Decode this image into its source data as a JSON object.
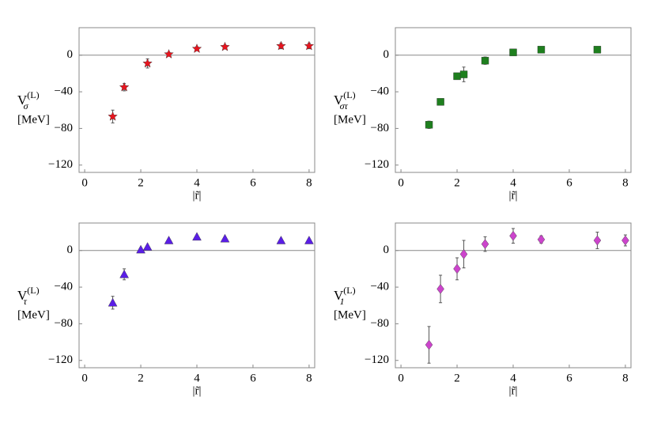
{
  "chart_data": [
    {
      "type": "scatter",
      "marker": "star",
      "color": "#e8141e",
      "ylabel": {
        "main": "V",
        "sup": "(L)",
        "sub": "σ"
      },
      "yunit": "[MeV]",
      "xlabel": "|r̃|",
      "x": [
        1,
        1.41,
        2.24,
        3,
        4,
        5,
        7,
        8
      ],
      "values": [
        -67,
        -35,
        -9,
        1,
        7,
        9,
        10,
        10
      ],
      "errors": [
        7,
        4,
        5,
        2,
        2,
        2,
        3,
        3
      ],
      "xlim": [
        -0.2,
        8.2
      ],
      "ylim": [
        -128,
        30
      ],
      "xticks": [
        0,
        2,
        4,
        6,
        8
      ],
      "yticks": [
        {
          "value": -120,
          "label": "−120"
        },
        {
          "value": -80,
          "label": "−80"
        },
        {
          "value": -40,
          "label": "−40"
        },
        0
      ]
    },
    {
      "type": "scatter",
      "marker": "square",
      "color": "#1e7f1e",
      "ylabel": {
        "main": "V",
        "sup": "(L)",
        "sub": "στ"
      },
      "yunit": "[MeV]",
      "xlabel": "|r̃|",
      "x": [
        1,
        1.41,
        2,
        2.24,
        3,
        4,
        5,
        7
      ],
      "values": [
        -76,
        -51,
        -23,
        -21,
        -6,
        3,
        6,
        6
      ],
      "errors": [
        4,
        3,
        3,
        8,
        4,
        1,
        1,
        1
      ],
      "xlim": [
        -0.2,
        8.2
      ],
      "ylim": [
        -128,
        30
      ],
      "xticks": [
        0,
        2,
        4,
        6,
        8
      ],
      "yticks": [
        {
          "value": -120,
          "label": "−120"
        },
        {
          "value": -80,
          "label": "−80"
        },
        {
          "value": -40,
          "label": "−40"
        },
        0
      ]
    },
    {
      "type": "scatter",
      "marker": "triangle",
      "color": "#5a1ee6",
      "ylabel": {
        "main": "V",
        "sup": "(L)",
        "sub": "τ"
      },
      "yunit": "[MeV]",
      "xlabel": "|r̃|",
      "x": [
        1,
        1.41,
        2,
        2.24,
        3,
        4,
        5,
        7,
        8
      ],
      "values": [
        -57,
        -26,
        1,
        4,
        11,
        15,
        13,
        11,
        11
      ],
      "errors": [
        7,
        6,
        1,
        1,
        1,
        1,
        1,
        1,
        1
      ],
      "xlim": [
        -0.2,
        8.2
      ],
      "ylim": [
        -128,
        30
      ],
      "xticks": [
        0,
        2,
        4,
        6,
        8
      ],
      "yticks": [
        {
          "value": -120,
          "label": "−120"
        },
        {
          "value": -80,
          "label": "−80"
        },
        {
          "value": -40,
          "label": "−40"
        },
        0
      ]
    },
    {
      "type": "scatter",
      "marker": "diamond",
      "color": "#cc44cc",
      "ylabel": {
        "main": "V",
        "sup": "(L)",
        "sub": "1"
      },
      "yunit": "[MeV]",
      "xlabel": "|r̃|",
      "x": [
        1,
        1.41,
        2,
        2.24,
        3,
        4,
        5,
        7,
        8
      ],
      "values": [
        -103,
        -42,
        -20,
        -4,
        7,
        16,
        12,
        11,
        11
      ],
      "errors": [
        20,
        15,
        12,
        15,
        8,
        8,
        4,
        9,
        6
      ],
      "xlim": [
        -0.2,
        8.2
      ],
      "ylim": [
        -128,
        30
      ],
      "xticks": [
        0,
        2,
        4,
        6,
        8
      ],
      "yticks": [
        {
          "value": -120,
          "label": "−120"
        },
        {
          "value": -80,
          "label": "−80"
        },
        {
          "value": -40,
          "label": "−40"
        },
        0
      ]
    }
  ]
}
